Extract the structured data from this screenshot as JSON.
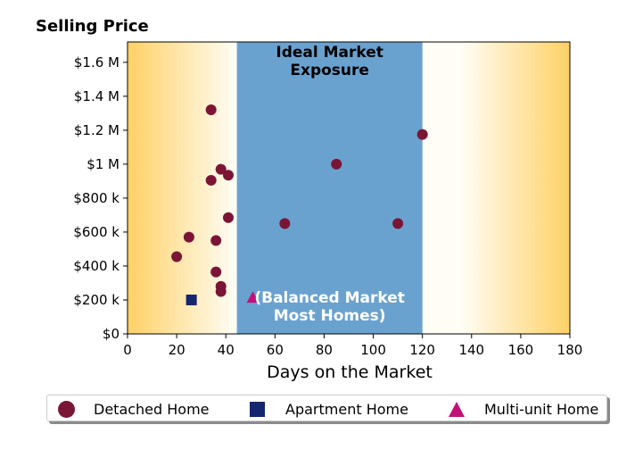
{
  "chart_data": {
    "type": "scatter",
    "title": "Selling Price",
    "xlabel": "Days on the Market",
    "ylabel": "",
    "xlim": [
      0,
      180
    ],
    "ylim": [
      0,
      1720000
    ],
    "x_ticks": [
      0,
      20,
      40,
      60,
      80,
      100,
      120,
      140,
      160,
      180
    ],
    "x_tick_labels": [
      "0",
      "20",
      "40",
      "60",
      "80",
      "100",
      "120",
      "140",
      "160",
      "180"
    ],
    "y_ticks": [
      0,
      200000,
      400000,
      600000,
      800000,
      1000000,
      1200000,
      1400000,
      1600000
    ],
    "y_tick_labels": [
      "$0",
      "$200 k",
      "$400 k",
      "$600 k",
      "$800 k",
      "$1 M",
      "$1.2 M",
      "$1.4 M",
      "$1.6 M"
    ],
    "zone": {
      "x_start": 44.5,
      "x_end": 120,
      "color": "#6aa2cf",
      "top_label": [
        "Ideal Market",
        "Exposure"
      ],
      "bottom_label": [
        "(Balanced Market",
        "Most Homes)"
      ]
    },
    "background_gradient": {
      "edge_color": "#ffd166",
      "center_color": "#fffdf5"
    },
    "series": [
      {
        "name": "Detached Home",
        "marker": "circle",
        "color": "#7b1535",
        "points": [
          [
            34,
            1320000
          ],
          [
            38,
            970000
          ],
          [
            41,
            935000
          ],
          [
            34,
            905000
          ],
          [
            41,
            685000
          ],
          [
            25,
            570000
          ],
          [
            36,
            550000
          ],
          [
            20,
            455000
          ],
          [
            36,
            365000
          ],
          [
            38,
            280000
          ],
          [
            38,
            250000
          ],
          [
            64,
            650000
          ],
          [
            85,
            1000000
          ],
          [
            110,
            650000
          ],
          [
            120,
            1175000
          ]
        ]
      },
      {
        "name": "Apartment Home",
        "marker": "square",
        "color": "#13266e",
        "points": [
          [
            26,
            200000
          ]
        ]
      },
      {
        "name": "Multi-unit Home",
        "marker": "triangle",
        "color": "#c2127a",
        "points": [
          [
            51,
            215000
          ]
        ]
      }
    ]
  },
  "legend": {
    "items": [
      {
        "label": "Detached Home",
        "marker": "circle"
      },
      {
        "label": "Apartment Home",
        "marker": "square"
      },
      {
        "label": "Multi-unit Home",
        "marker": "triangle"
      }
    ]
  }
}
